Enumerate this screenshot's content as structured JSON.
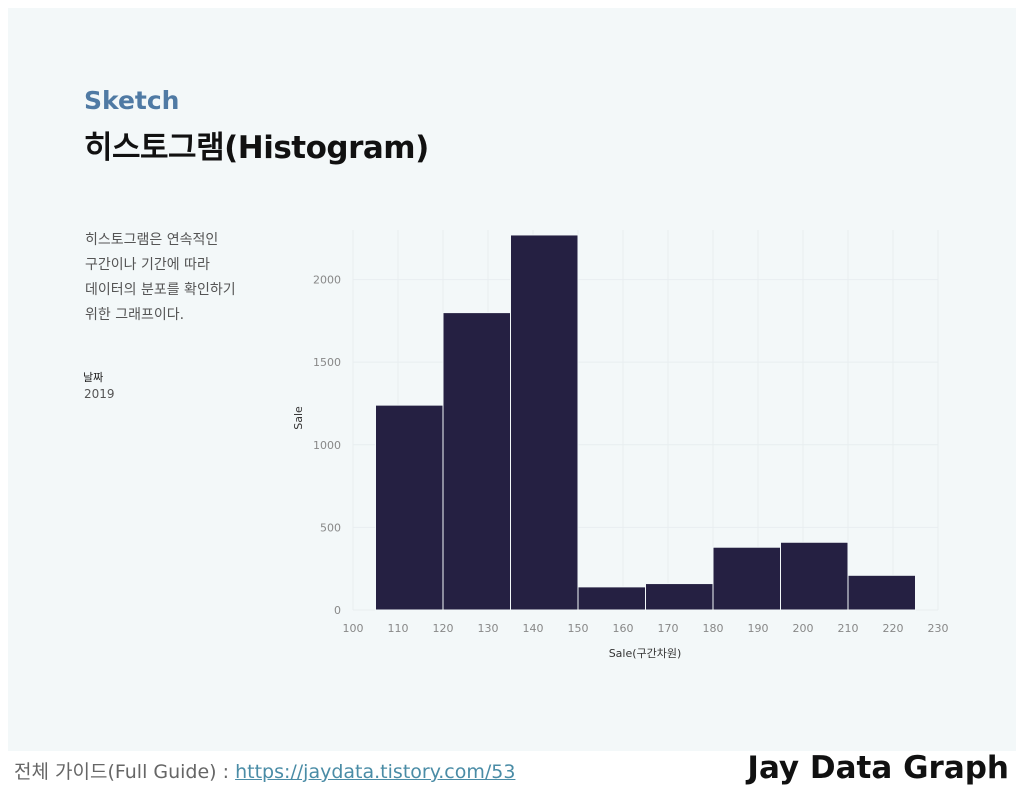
{
  "header": {
    "kicker": "Sketch",
    "title": "히스토그램(Histogram)"
  },
  "description": [
    "히스토그램은 연속적인",
    "구간이나 기간에 따라",
    "데이터의 분포를 확인하기",
    "위한 그래프이다."
  ],
  "filter": {
    "label": "날짜",
    "value": "2019"
  },
  "footer": {
    "guide_prefix": "전체 가이드(Full Guide) : ",
    "guide_link": "https://jaydata.tistory.com/53",
    "brand": "Jay Data Graph"
  },
  "colors": {
    "bar": "#252042",
    "kicker": "#4f7aa4",
    "link": "#4a8ca6",
    "panel": "#f3f8f9"
  },
  "chart_data": {
    "type": "bar",
    "xlabel": "Sale(구간차원)",
    "ylabel": "Sale",
    "xlim": [
      100,
      230
    ],
    "ylim": [
      0,
      2300
    ],
    "xticks": [
      100,
      110,
      120,
      130,
      140,
      150,
      160,
      170,
      180,
      190,
      200,
      210,
      220,
      230
    ],
    "yticks": [
      0,
      500,
      1000,
      1500,
      2000
    ],
    "grid": true,
    "bins": [
      {
        "x0": 105,
        "x1": 120,
        "value": 1240
      },
      {
        "x0": 120,
        "x1": 135,
        "value": 1800
      },
      {
        "x0": 135,
        "x1": 150,
        "value": 2270
      },
      {
        "x0": 150,
        "x1": 165,
        "value": 140
      },
      {
        "x0": 165,
        "x1": 180,
        "value": 160
      },
      {
        "x0": 180,
        "x1": 195,
        "value": 380
      },
      {
        "x0": 195,
        "x1": 210,
        "value": 410
      },
      {
        "x0": 210,
        "x1": 225,
        "value": 210
      }
    ]
  }
}
